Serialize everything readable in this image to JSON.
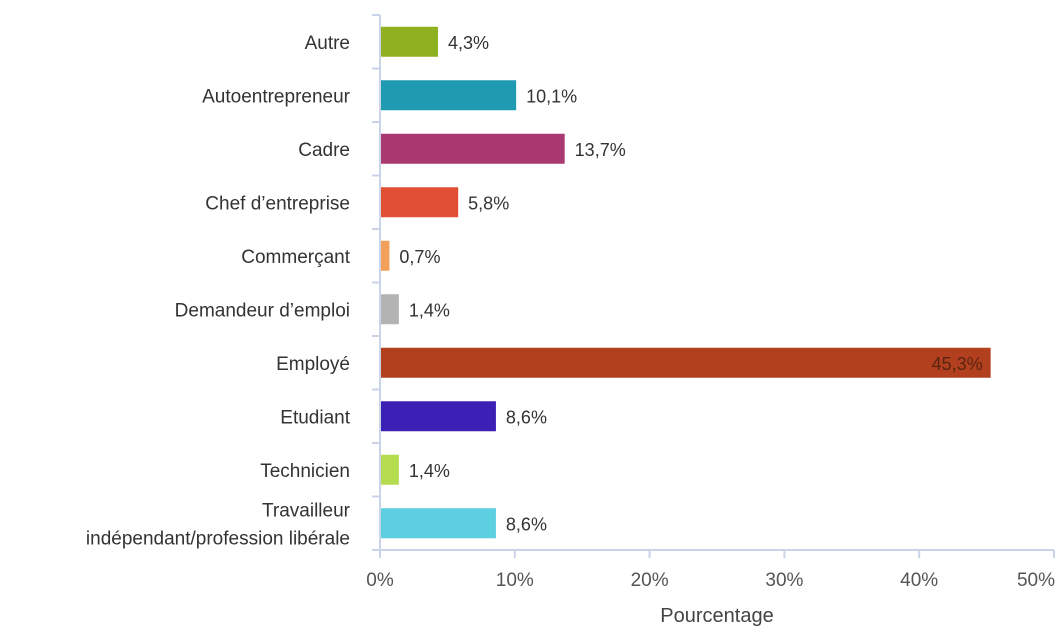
{
  "chart_data": {
    "type": "bar",
    "orientation": "horizontal",
    "title": "",
    "xlabel": "Pourcentage",
    "ylabel": "",
    "xlim": [
      0,
      50
    ],
    "grid": false,
    "legend": "none",
    "categories": [
      [
        "Autre"
      ],
      [
        "Autoentrepreneur"
      ],
      [
        "Cadre"
      ],
      [
        "Chef d’entreprise"
      ],
      [
        "Commerçant"
      ],
      [
        "Demandeur d’emploi"
      ],
      [
        "Employé"
      ],
      [
        "Etudiant"
      ],
      [
        "Technicien"
      ],
      [
        "Travailleur",
        "indépendant/profession libérale"
      ]
    ],
    "values": [
      4.3,
      10.1,
      13.7,
      5.8,
      0.7,
      1.4,
      45.3,
      8.6,
      1.4,
      8.6
    ],
    "value_labels": [
      "4,3%",
      "10,1%",
      "13,7%",
      "5,8%",
      "0,7%",
      "1,4%",
      "45,3%",
      "8,6%",
      "1,4%",
      "8,6%"
    ],
    "colors": [
      "#8fb021",
      "#1f9ab1",
      "#a93970",
      "#e15035",
      "#f2a05a",
      "#b3b3b3",
      "#b2401e",
      "#3b20b6",
      "#b4dc4e",
      "#5ccfe0"
    ],
    "x_ticks": [
      "0%",
      "10%",
      "20%",
      "30%",
      "40%",
      "50%"
    ],
    "tick_values": [
      0,
      10,
      20,
      30,
      40,
      50
    ],
    "axis_color": "#c9d4e8"
  }
}
